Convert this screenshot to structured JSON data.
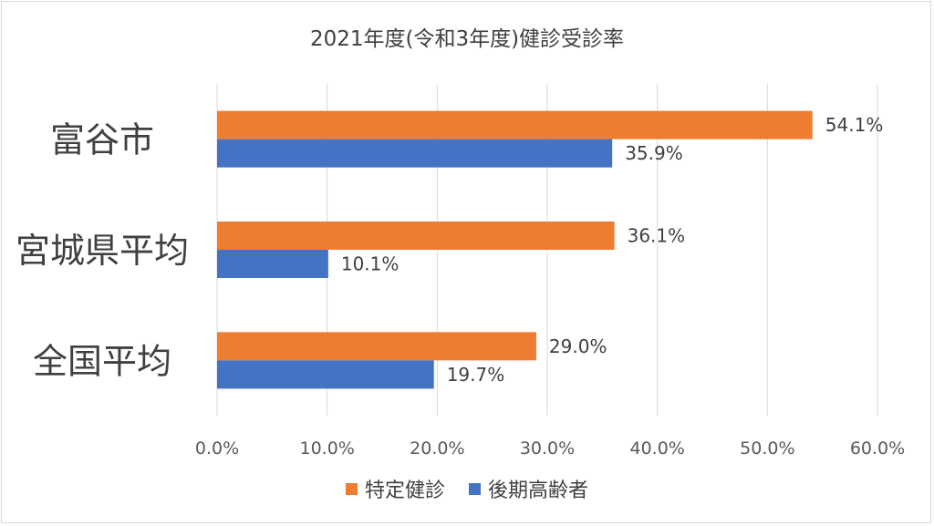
{
  "chart_data": {
    "type": "bar",
    "orientation": "horizontal",
    "title": "2021年度(令和3年度)健診受診率",
    "categories": [
      "富谷市",
      "宮城県平均",
      "全国平均"
    ],
    "series": [
      {
        "name": "特定健診",
        "color": "#ED7D31",
        "values": [
          54.1,
          36.1,
          29.0
        ],
        "labels": [
          "54.1%",
          "36.1%",
          "29.0%"
        ]
      },
      {
        "name": "後期高齢者",
        "color": "#4472C4",
        "values": [
          35.9,
          10.1,
          19.7
        ],
        "labels": [
          "35.9%",
          "10.1%",
          "19.7%"
        ]
      }
    ],
    "xlim": [
      0,
      60
    ],
    "xticks": [
      0,
      10,
      20,
      30,
      40,
      50,
      60
    ],
    "xtick_labels": [
      "0.0%",
      "10.0%",
      "20.0%",
      "30.0%",
      "40.0%",
      "50.0%",
      "60.0%"
    ],
    "grid": true,
    "legend_position": "bottom"
  }
}
